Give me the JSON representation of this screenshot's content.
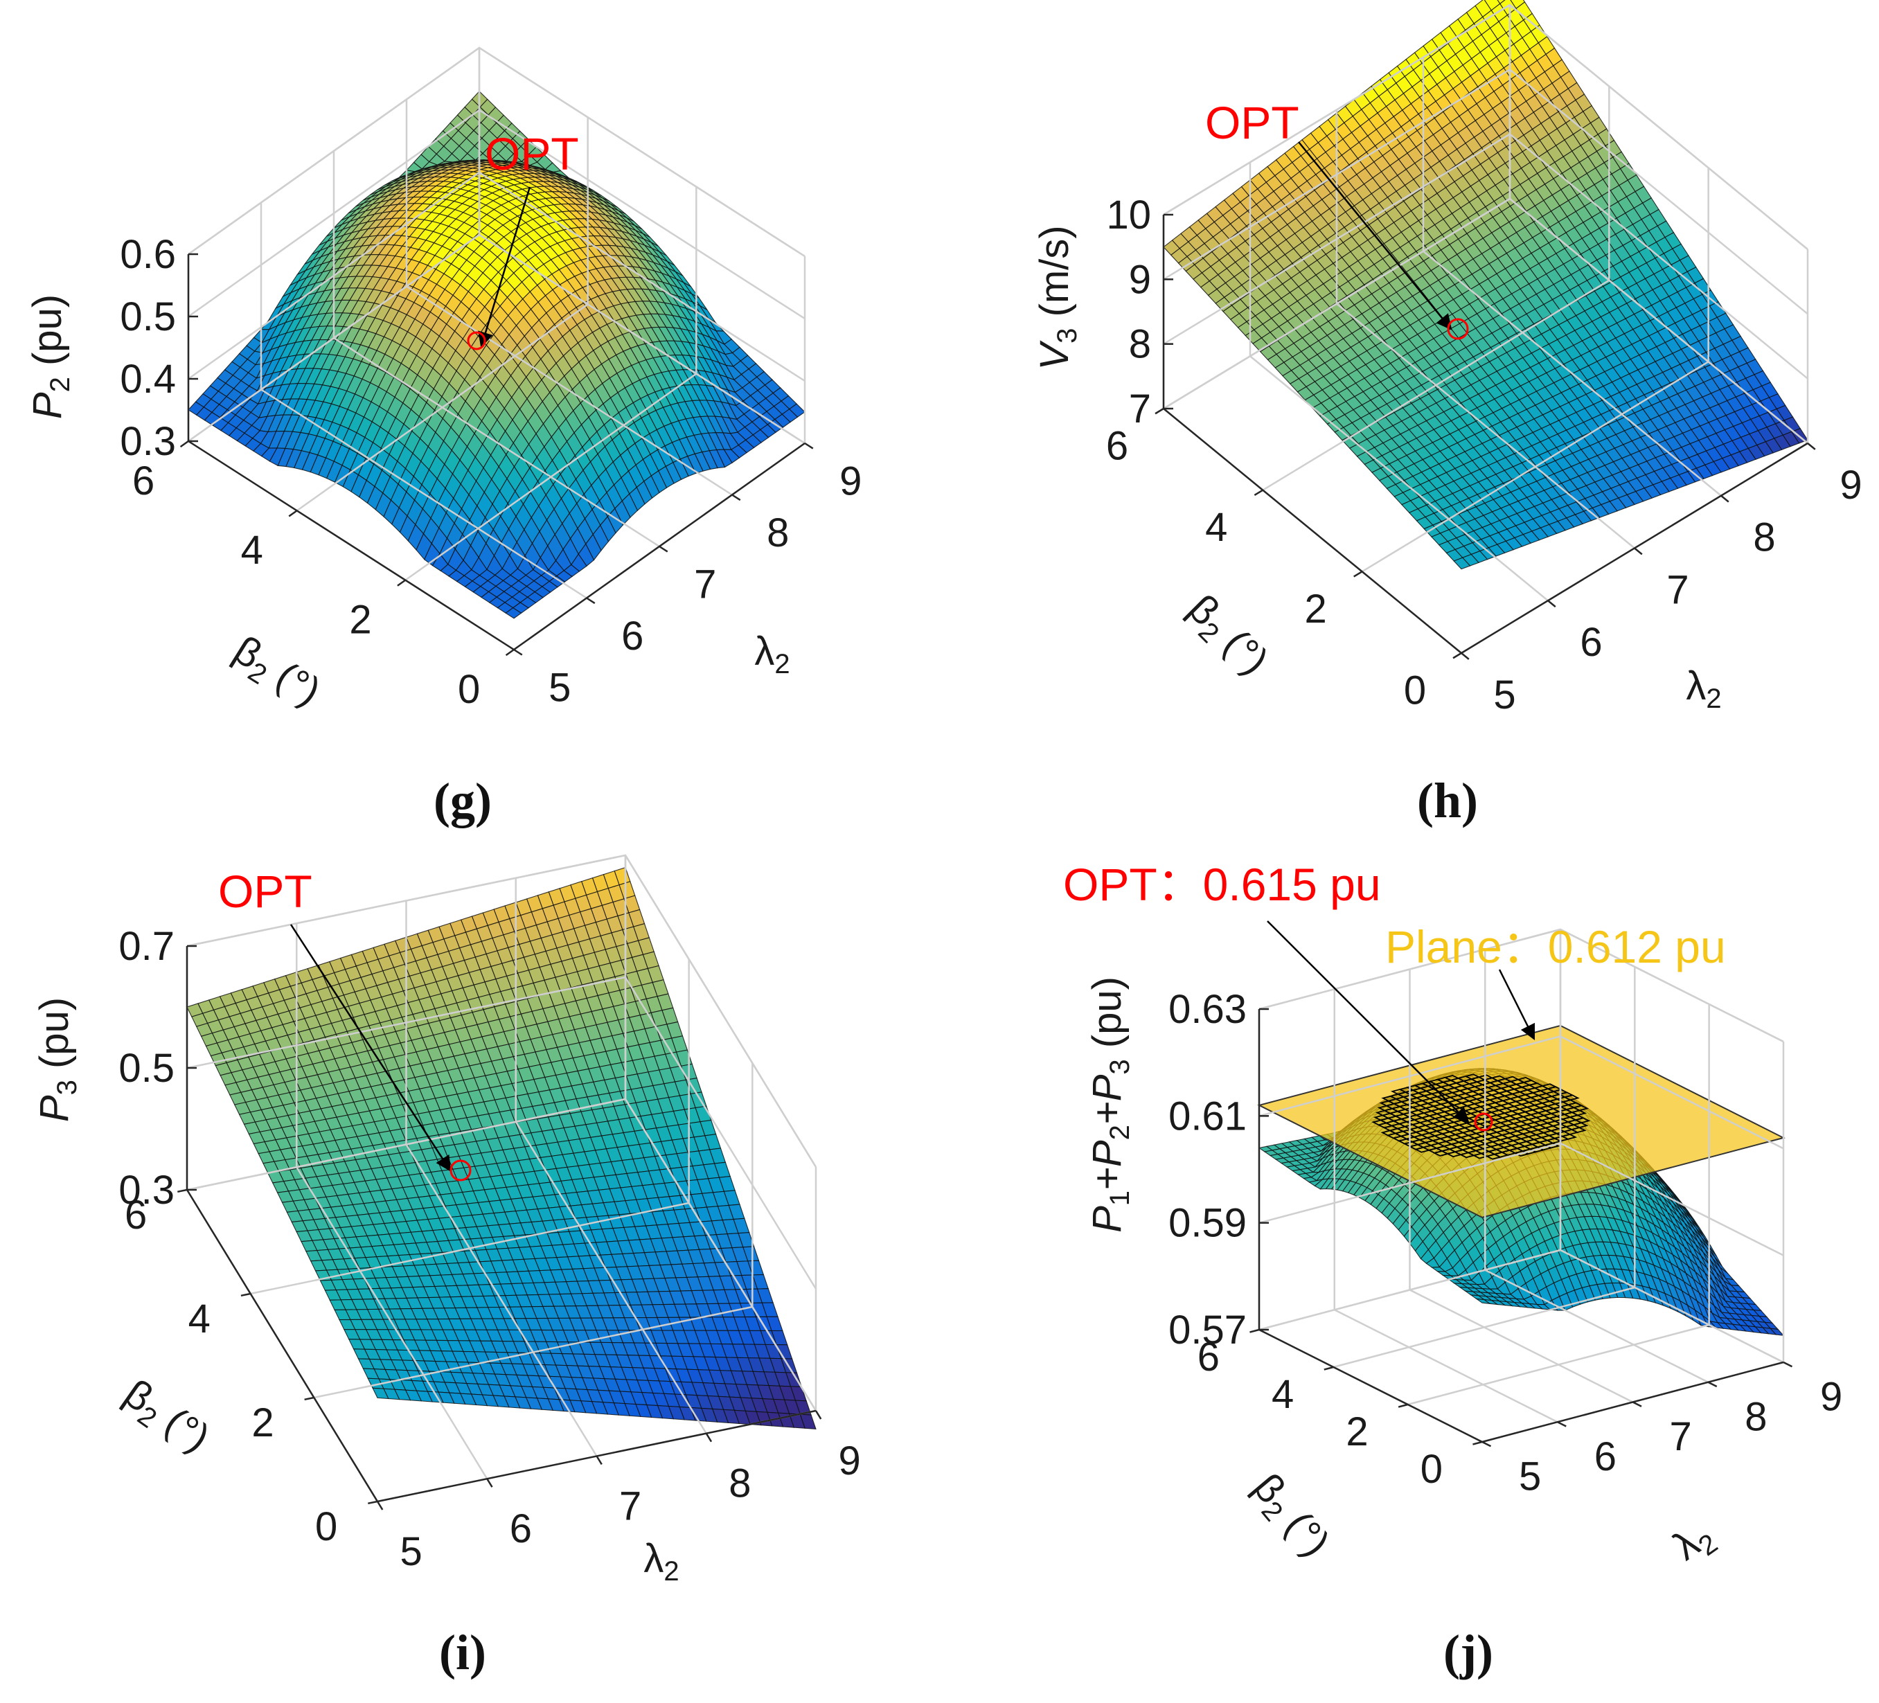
{
  "colors": {
    "opt_red": "#ff0000",
    "plane_yellow": "#f5c518",
    "grid": "#d0d0d0",
    "axis": "#262626"
  },
  "chart_data": [
    {
      "type": "surface",
      "id": "g",
      "caption": "(g)",
      "zlabel_main": "P",
      "zlabel_sub": "2",
      "zlabel_unit": " (pu)",
      "xlabel_main": "β",
      "xlabel_sub": "2",
      "xlabel_unit": " (°)",
      "ylabel_main": "λ",
      "ylabel_sub": "2",
      "x_range": [
        0,
        6
      ],
      "y_range": [
        5,
        9
      ],
      "z_range": [
        0.3,
        0.6
      ],
      "x_ticks": [
        "0",
        "2",
        "4",
        "6"
      ],
      "y_ticks": [
        "5",
        "6",
        "7",
        "8",
        "9"
      ],
      "z_ticks": [
        "0.3",
        "0.4",
        "0.5",
        "0.6"
      ],
      "corner_values": {
        "beta0_lambda5": 0.35,
        "beta6_lambda5": 0.35,
        "beta0_lambda9": 0.35,
        "beta6_lambda9": 0.53
      },
      "peak": {
        "beta": 3.0,
        "lambda": 7.0,
        "value": 0.59
      },
      "opt": {
        "label": "OPT",
        "beta": 3.0,
        "lambda": 7.0,
        "value": 0.59
      }
    },
    {
      "type": "surface",
      "id": "h",
      "caption": "(h)",
      "zlabel_main": "V",
      "zlabel_sub": "3",
      "zlabel_unit": " (m/s)",
      "xlabel_main": "β",
      "xlabel_sub": "2",
      "xlabel_unit": " (°)",
      "ylabel_main": "λ",
      "ylabel_sub": "2",
      "x_range": [
        0,
        6
      ],
      "y_range": [
        5,
        9
      ],
      "z_range": [
        7,
        10
      ],
      "x_ticks": [
        "0",
        "2",
        "4",
        "6"
      ],
      "y_ticks": [
        "5",
        "6",
        "7",
        "8",
        "9"
      ],
      "z_ticks": [
        "7",
        "8",
        "9",
        "10"
      ],
      "corner_values": {
        "beta0_lambda5": 8.3,
        "beta6_lambda5": 9.5,
        "beta0_lambda9": 7.05,
        "beta6_lambda9": 10.4
      },
      "opt": {
        "label": "OPT",
        "beta": 3.0,
        "lambda": 7.0,
        "value": 8.75
      }
    },
    {
      "type": "surface",
      "id": "i",
      "caption": "(i)",
      "zlabel_main": "P",
      "zlabel_sub": "3",
      "zlabel_unit": " (pu)",
      "xlabel_main": "β",
      "xlabel_sub": "2",
      "xlabel_unit": " (°)",
      "ylabel_main": "λ",
      "ylabel_sub": "2",
      "x_range": [
        0,
        6
      ],
      "y_range": [
        5,
        9
      ],
      "z_range": [
        0.3,
        0.7
      ],
      "x_ticks": [
        "0",
        "2",
        "4",
        "6"
      ],
      "y_ticks": [
        "5",
        "6",
        "7",
        "8",
        "9"
      ],
      "z_ticks": [
        "0.3",
        "0.5",
        "0.7"
      ],
      "corner_values": {
        "beta0_lambda5": 0.47,
        "beta6_lambda5": 0.6,
        "beta0_lambda9": 0.27,
        "beta6_lambda9": 0.68
      },
      "opt": {
        "label": "OPT",
        "beta": 3.0,
        "lambda": 7.0,
        "value": 0.49
      }
    },
    {
      "type": "surface",
      "id": "j",
      "caption": "(j)",
      "zlabel_parts": [
        "P",
        "1",
        "+P",
        "2",
        "+P",
        "3",
        " (pu)"
      ],
      "xlabel_main": "β",
      "xlabel_sub": "2",
      "xlabel_unit": " (°)",
      "ylabel_main": "λ",
      "ylabel_sub": "2",
      "x_range": [
        0,
        6
      ],
      "y_range": [
        5,
        9
      ],
      "z_range": [
        0.57,
        0.63
      ],
      "x_ticks": [
        "0",
        "2",
        "4",
        "6"
      ],
      "y_ticks": [
        "5",
        "6",
        "7",
        "8",
        "9"
      ],
      "z_ticks": [
        "0.57",
        "0.59",
        "0.61",
        "0.63"
      ],
      "corner_values": {
        "beta0_lambda5": 0.596,
        "beta6_lambda5": 0.604,
        "beta0_lambda9": 0.575,
        "beta6_lambda9": 0.6
      },
      "peak": {
        "beta": 3.0,
        "lambda": 7.0,
        "value": 0.615
      },
      "opt": {
        "label": "OPT：0.615 pu",
        "beta": 3.0,
        "lambda": 7.0,
        "value": 0.615
      },
      "plane": {
        "label": "Plane：0.612 pu",
        "value": 0.612
      }
    }
  ]
}
